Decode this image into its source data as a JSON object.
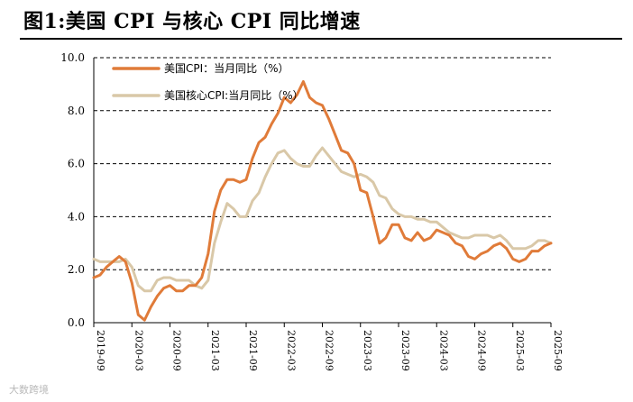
{
  "title": "图1:美国 CPI 与核心 CPI 同比增速",
  "watermark": "大数跨境",
  "chart_data": {
    "type": "line",
    "title": "图1:美国 CPI 与核心 CPI 同比增速",
    "xlabel": "",
    "ylabel": "",
    "ylim": [
      0,
      10
    ],
    "yticks": [
      "0.0",
      "2.0",
      "4.0",
      "6.0",
      "8.0",
      "10.0"
    ],
    "x_start": "2019-09",
    "x_end": "2025-09",
    "xticks": [
      "2019-09",
      "2020-03",
      "2020-09",
      "2021-03",
      "2021-09",
      "2022-03",
      "2022-09",
      "2023-03",
      "2023-09",
      "2024-03",
      "2024-09",
      "2025-03",
      "2025-09"
    ],
    "grid": "horizontal dashed",
    "legend_position": "top-left",
    "x": [
      "2019-09",
      "2019-10",
      "2019-11",
      "2019-12",
      "2020-01",
      "2020-02",
      "2020-03",
      "2020-04",
      "2020-05",
      "2020-06",
      "2020-07",
      "2020-08",
      "2020-09",
      "2020-10",
      "2020-11",
      "2020-12",
      "2021-01",
      "2021-02",
      "2021-03",
      "2021-04",
      "2021-05",
      "2021-06",
      "2021-07",
      "2021-08",
      "2021-09",
      "2021-10",
      "2021-11",
      "2021-12",
      "2022-01",
      "2022-02",
      "2022-03",
      "2022-04",
      "2022-05",
      "2022-06",
      "2022-07",
      "2022-08",
      "2022-09",
      "2022-10",
      "2022-11",
      "2022-12",
      "2023-01",
      "2023-02",
      "2023-03",
      "2023-04",
      "2023-05",
      "2023-06",
      "2023-07",
      "2023-08",
      "2023-09",
      "2023-10",
      "2023-11",
      "2023-12",
      "2024-01",
      "2024-02",
      "2024-03",
      "2024-04",
      "2024-05",
      "2024-06",
      "2024-07",
      "2024-08",
      "2024-09",
      "2024-10",
      "2024-11",
      "2024-12",
      "2025-01",
      "2025-02",
      "2025-03",
      "2025-04",
      "2025-05",
      "2025-06",
      "2025-07",
      "2025-08",
      "2025-09"
    ],
    "series": [
      {
        "name": "美国CPI：当月同比（%）",
        "color": "#e07b39",
        "values": [
          1.7,
          1.8,
          2.1,
          2.3,
          2.5,
          2.3,
          1.5,
          0.3,
          0.1,
          0.6,
          1.0,
          1.3,
          1.4,
          1.2,
          1.2,
          1.4,
          1.4,
          1.7,
          2.6,
          4.2,
          5.0,
          5.4,
          5.4,
          5.3,
          5.4,
          6.2,
          6.8,
          7.0,
          7.5,
          7.9,
          8.5,
          8.3,
          8.6,
          9.1,
          8.5,
          8.3,
          8.2,
          7.7,
          7.1,
          6.5,
          6.4,
          6.0,
          5.0,
          4.9,
          4.0,
          3.0,
          3.2,
          3.7,
          3.7,
          3.2,
          3.1,
          3.4,
          3.1,
          3.2,
          3.5,
          3.4,
          3.3,
          3.0,
          2.9,
          2.5,
          2.4,
          2.6,
          2.7,
          2.9,
          3.0,
          2.8,
          2.4,
          2.3,
          2.4,
          2.7,
          2.7,
          2.9,
          3.0
        ]
      },
      {
        "name": "美国核心CPI:当月同比（%）",
        "color": "#d9c8a8",
        "values": [
          2.4,
          2.3,
          2.3,
          2.3,
          2.3,
          2.4,
          2.1,
          1.4,
          1.2,
          1.2,
          1.6,
          1.7,
          1.7,
          1.6,
          1.6,
          1.6,
          1.4,
          1.3,
          1.6,
          3.0,
          3.8,
          4.5,
          4.3,
          4.0,
          4.0,
          4.6,
          4.9,
          5.5,
          6.0,
          6.4,
          6.5,
          6.2,
          6.0,
          5.9,
          5.9,
          6.3,
          6.6,
          6.3,
          6.0,
          5.7,
          5.6,
          5.5,
          5.6,
          5.5,
          5.3,
          4.8,
          4.7,
          4.3,
          4.1,
          4.0,
          4.0,
          3.9,
          3.9,
          3.8,
          3.8,
          3.6,
          3.4,
          3.3,
          3.2,
          3.2,
          3.3,
          3.3,
          3.3,
          3.2,
          3.3,
          3.1,
          2.8,
          2.8,
          2.8,
          2.9,
          3.1,
          3.1,
          3.0
        ]
      }
    ]
  }
}
